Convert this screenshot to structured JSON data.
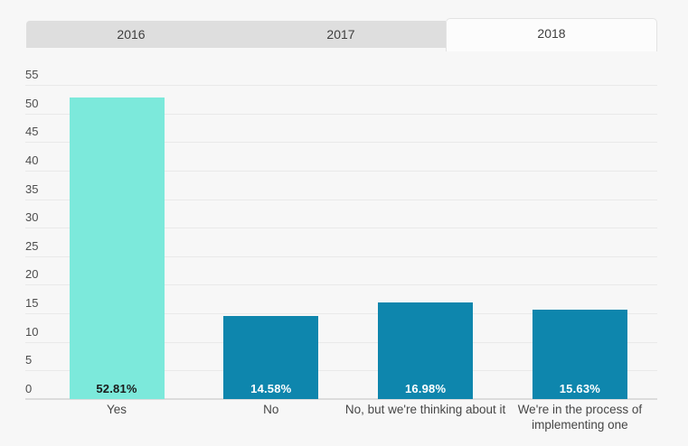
{
  "tabs": [
    {
      "label": "2016",
      "active": false
    },
    {
      "label": "2017",
      "active": false
    },
    {
      "label": "2018",
      "active": true
    }
  ],
  "chart_data": {
    "type": "bar",
    "title": "",
    "xlabel": "",
    "ylabel": "",
    "categories": [
      "Yes",
      "No",
      "No, but we're thinking about it",
      "We're in the process of implementing one"
    ],
    "values": [
      52.81,
      14.58,
      16.98,
      15.63
    ],
    "value_labels": [
      "52.81%",
      "14.58%",
      "16.98%",
      "15.63%"
    ],
    "bar_colors": [
      "#7CE9DB",
      "#0E86AD",
      "#0E86AD",
      "#0E86AD"
    ],
    "value_label_colors": [
      "#1b1b1b",
      "#ffffff",
      "#ffffff",
      "#ffffff"
    ],
    "yticks": [
      0,
      5,
      10,
      15,
      20,
      25,
      30,
      35,
      40,
      45,
      50,
      55
    ],
    "ylim": [
      0,
      55
    ],
    "grid": true,
    "legend": "none",
    "active_tab": "2018"
  },
  "colors": {
    "page_background": "#f7f7f7",
    "tab_inactive_bg": "#dedede",
    "tab_active_bg": "#fcfcfc",
    "bar_teal": "#7CE9DB",
    "bar_blue": "#0E86AD",
    "gridline": "#e9e9e9",
    "baseline": "#dcdcdc",
    "axis_text": "#4d4d4d"
  }
}
